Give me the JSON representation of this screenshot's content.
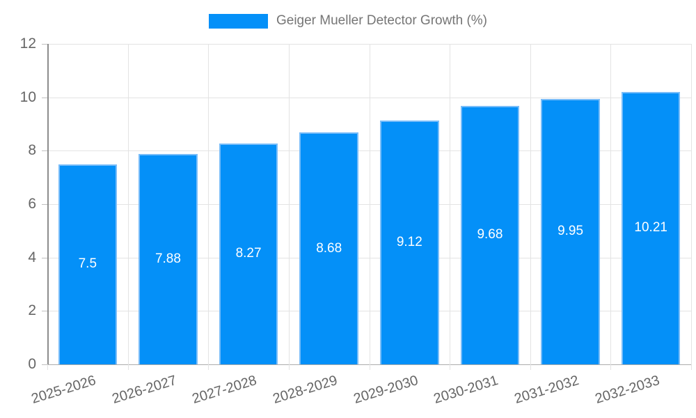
{
  "chart_data": {
    "type": "bar",
    "title": "Geiger Mueller Detector Growth (%)",
    "categories": [
      "2025-2026",
      "2026-2027",
      "2027-2028",
      "2028-2029",
      "2029-2030",
      "2030-2031",
      "2031-2032",
      "2032-2033"
    ],
    "values": [
      7.5,
      7.88,
      8.27,
      8.68,
      9.12,
      9.68,
      9.95,
      10.21
    ],
    "value_labels": [
      "7.5",
      "7.88",
      "8.27",
      "8.68",
      "9.12",
      "9.68",
      "9.95",
      "10.21"
    ],
    "xlabel": "",
    "ylabel": "",
    "ylim": [
      0,
      12
    ],
    "yticks": [
      0,
      2,
      4,
      6,
      8,
      10,
      12
    ],
    "grid": true,
    "legend_position": "top",
    "value_label_position": "center",
    "x_tick_rotation_deg": -17,
    "colors": {
      "bar": "#0490f8",
      "bar_border": "#79bdf9",
      "value_label": "#ffffff",
      "grid": "#e3e3e3",
      "y_axis_line": "#8c8c8c",
      "x_axis_line": "#ababab",
      "tick_label": "#666666",
      "legend_text": "#757575"
    }
  }
}
